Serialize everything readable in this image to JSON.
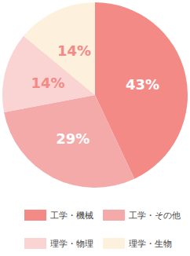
{
  "chart_data": {
    "type": "pie",
    "categories": [
      "工学・機械",
      "工学・その他",
      "理学・物理",
      "理学・生物"
    ],
    "values": [
      43,
      29,
      14,
      14
    ],
    "value_labels": [
      "43%",
      "29%",
      "14%",
      "14%"
    ],
    "colors": [
      "#f38a86",
      "#f4aaa9",
      "#f9d4d3",
      "#fdf1de"
    ],
    "data_labels": true,
    "legend": "bottom"
  }
}
